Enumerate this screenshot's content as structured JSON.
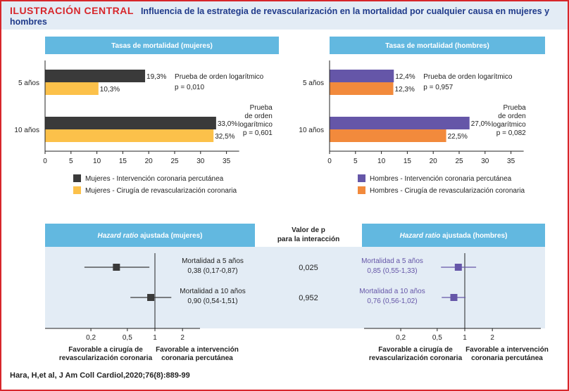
{
  "header": {
    "tag": "ILUSTRACIÓN CENTRAL",
    "title": "Influencia de la estrategia de revascularización en la mortalidad por cualquier causa en mujeres y hombres"
  },
  "colors": {
    "band": "#62b8e0",
    "pci_women": "#3a3a3a",
    "cabg_women": "#fcc14a",
    "pci_men": "#6556a8",
    "cabg_men": "#f28a3c",
    "hr_bg": "#e3ecf5",
    "hr_men_text": "#6556a8",
    "accent_red": "#d7262b"
  },
  "chart_data": [
    {
      "type": "bar",
      "orientation": "horizontal",
      "title": "Tasas de mortalidad (mujeres)",
      "categories": [
        "5 años",
        "10 años"
      ],
      "series": [
        {
          "name": "Mujeres - Intervención coronaria percutánea",
          "values": [
            19.3,
            33.0
          ],
          "labels": [
            "19,3%",
            "33,0%"
          ]
        },
        {
          "name": "Mujeres - Cirugía de revascularización coronaria",
          "values": [
            10.3,
            32.5
          ],
          "labels": [
            "10,3%",
            "32,5%"
          ]
        }
      ],
      "annotations": [
        [
          "Prueba de orden logarítmico",
          "p = 0,010"
        ],
        [
          "Prueba",
          "de orden",
          "logarítmico",
          "p = 0,601"
        ]
      ],
      "xlim": [
        0,
        40
      ],
      "xticks": [
        0,
        5,
        10,
        15,
        20,
        25,
        30,
        35
      ]
    },
    {
      "type": "bar",
      "orientation": "horizontal",
      "title": "Tasas de mortalidad (hombres)",
      "categories": [
        "5 años",
        "10 años"
      ],
      "series": [
        {
          "name": "Hombres - Intervención coronaria percutánea",
          "values": [
            12.4,
            27.0
          ],
          "labels": [
            "12,4%",
            "27,0%"
          ]
        },
        {
          "name": "Hombres - Cirugía de revascularización coronaria",
          "values": [
            12.3,
            22.5
          ],
          "labels": [
            "12,3%",
            "22,5%"
          ]
        }
      ],
      "annotations": [
        [
          "Prueba de orden logarítmico",
          "p = 0,957"
        ],
        [
          "Prueba",
          "de orden",
          "logarítmico",
          "p = 0,082"
        ]
      ],
      "xlim": [
        0,
        40
      ],
      "xticks": [
        0,
        5,
        10,
        15,
        20,
        25,
        30,
        35
      ]
    },
    {
      "type": "scatter",
      "subtype": "forest",
      "title_italic": "Hazard ratio",
      "title_rest": " ajustada (mujeres)",
      "xscale": "log",
      "xlim": [
        0.1,
        3
      ],
      "xticks": [
        0.2,
        0.5,
        1,
        2
      ],
      "xticklabels": [
        "0,2",
        "0,5",
        "1",
        "2"
      ],
      "left_label": [
        "Favorable a cirugía de",
        "revascularización coronaria"
      ],
      "right_label": [
        "Favorable a intervención",
        "coronaria percutánea"
      ],
      "points": [
        {
          "label": "Mortalidad a 5 años",
          "ci_text": "0,38 (0,17-0,87)",
          "hr": 0.38,
          "lo": 0.17,
          "hi": 0.87
        },
        {
          "label": "Mortalidad a 10 años",
          "ci_text": "0,90 (0,54-1,51)",
          "hr": 0.9,
          "lo": 0.54,
          "hi": 1.51
        }
      ]
    },
    {
      "type": "scatter",
      "subtype": "forest",
      "title_italic": "Hazard ratio",
      "title_rest": " ajustada (hombres)",
      "xscale": "log",
      "xlim": [
        0.1,
        3
      ],
      "xticks": [
        0.2,
        0.5,
        1,
        2
      ],
      "xticklabels": [
        "0,2",
        "0,5",
        "1",
        "2"
      ],
      "left_label": [
        "Favorable a cirugía de",
        "revascularización coronaria"
      ],
      "right_label": [
        "Favorable a intervención",
        "coronaria percutánea"
      ],
      "points": [
        {
          "label": "Mortalidad a 5 años",
          "ci_text": "0,85 (0,55-1,33)",
          "hr": 0.85,
          "lo": 0.55,
          "hi": 1.33
        },
        {
          "label": "Mortalidad a 10 años",
          "ci_text": "0,76 (0,56-1,02)",
          "hr": 0.76,
          "lo": 0.56,
          "hi": 1.02
        }
      ]
    }
  ],
  "interaction": {
    "header": [
      "Valor de p",
      "para la interacción"
    ],
    "values": [
      "0,025",
      "0,952"
    ]
  },
  "citation": "Hara, H,et al, J Am Coll Cardiol,2020;76(8):889-99"
}
